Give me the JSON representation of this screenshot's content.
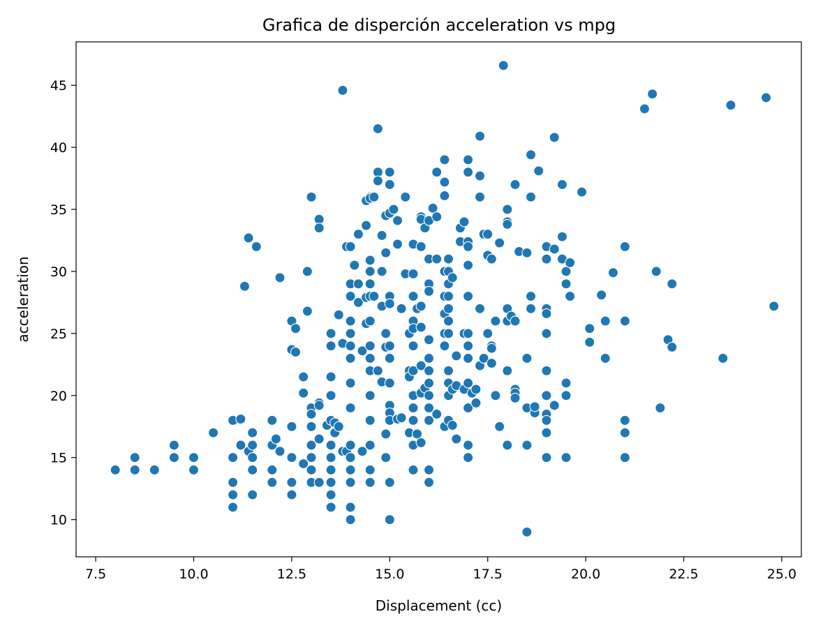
{
  "chart_data": {
    "type": "scatter",
    "title": "Grafica de disperción acceleration vs mpg",
    "xlabel": "Displacement (cc)",
    "ylabel": "acceleration",
    "xlim": [
      7.0,
      25.5
    ],
    "ylim": [
      7.0,
      48.5
    ],
    "xticks": [
      7.5,
      10.0,
      12.5,
      15.0,
      17.5,
      20.0,
      22.5,
      25.0
    ],
    "xtick_labels": [
      "7.5",
      "10.0",
      "12.5",
      "15.0",
      "17.5",
      "20.0",
      "22.5",
      "25.0"
    ],
    "yticks": [
      10,
      15,
      20,
      25,
      30,
      35,
      40,
      45
    ],
    "ytick_labels": [
      "10",
      "15",
      "20",
      "25",
      "30",
      "35",
      "40",
      "45"
    ],
    "grid": false,
    "legend": "none",
    "point_color": "#1f77b4",
    "points": [
      [
        8.0,
        14
      ],
      [
        8.5,
        14
      ],
      [
        8.5,
        15
      ],
      [
        9.0,
        14
      ],
      [
        9.5,
        15
      ],
      [
        9.5,
        16
      ],
      [
        10.0,
        15
      ],
      [
        10.0,
        14
      ],
      [
        10.5,
        17
      ],
      [
        11.0,
        18
      ],
      [
        11.0,
        15
      ],
      [
        11.0,
        13
      ],
      [
        11.0,
        12
      ],
      [
        11.0,
        11
      ],
      [
        11.2,
        18.1
      ],
      [
        11.2,
        16
      ],
      [
        11.3,
        28.8
      ],
      [
        11.4,
        32.7
      ],
      [
        11.4,
        15.5
      ],
      [
        11.5,
        17
      ],
      [
        11.5,
        16
      ],
      [
        11.5,
        15
      ],
      [
        11.5,
        14
      ],
      [
        11.5,
        12
      ],
      [
        11.6,
        32
      ],
      [
        12.0,
        18
      ],
      [
        12.0,
        16
      ],
      [
        12.0,
        14
      ],
      [
        12.0,
        13
      ],
      [
        12.1,
        16.5
      ],
      [
        12.2,
        29.5
      ],
      [
        12.2,
        15.5
      ],
      [
        12.5,
        26
      ],
      [
        12.5,
        23.7
      ],
      [
        12.5,
        17.5
      ],
      [
        12.5,
        15
      ],
      [
        12.5,
        13
      ],
      [
        12.5,
        12
      ],
      [
        12.6,
        25.4
      ],
      [
        12.6,
        23.5
      ],
      [
        12.8,
        21.5
      ],
      [
        12.8,
        20.2
      ],
      [
        12.8,
        14.5
      ],
      [
        12.9,
        30
      ],
      [
        12.9,
        26.8
      ],
      [
        13.0,
        36
      ],
      [
        13.0,
        19
      ],
      [
        13.0,
        18.5
      ],
      [
        13.0,
        17.5
      ],
      [
        13.0,
        16
      ],
      [
        13.0,
        15
      ],
      [
        13.0,
        14
      ],
      [
        13.0,
        13
      ],
      [
        13.2,
        34.2
      ],
      [
        13.2,
        33.5
      ],
      [
        13.2,
        19.4
      ],
      [
        13.2,
        19.2
      ],
      [
        13.2,
        16.5
      ],
      [
        13.2,
        13
      ],
      [
        13.4,
        17.6
      ],
      [
        13.5,
        21.5
      ],
      [
        13.5,
        20
      ],
      [
        13.5,
        18
      ],
      [
        13.5,
        16
      ],
      [
        13.5,
        15
      ],
      [
        13.5,
        14
      ],
      [
        13.5,
        13
      ],
      [
        13.5,
        12
      ],
      [
        13.5,
        11
      ],
      [
        13.5,
        25
      ],
      [
        13.5,
        24
      ],
      [
        13.6,
        17.8
      ],
      [
        13.6,
        17
      ],
      [
        13.7,
        26.5
      ],
      [
        13.7,
        17.5
      ],
      [
        13.8,
        44.6
      ],
      [
        13.8,
        24.2
      ],
      [
        13.8,
        15.5
      ],
      [
        13.9,
        32
      ],
      [
        13.9,
        15.5
      ],
      [
        14.0,
        32
      ],
      [
        14.0,
        29
      ],
      [
        14.0,
        28
      ],
      [
        14.0,
        26
      ],
      [
        14.0,
        25
      ],
      [
        14.0,
        24
      ],
      [
        14.0,
        23
      ],
      [
        14.0,
        21
      ],
      [
        14.0,
        19
      ],
      [
        14.0,
        16
      ],
      [
        14.0,
        15
      ],
      [
        14.0,
        14
      ],
      [
        14.0,
        13
      ],
      [
        14.0,
        11
      ],
      [
        14.0,
        10
      ],
      [
        14.1,
        30.5
      ],
      [
        14.2,
        33
      ],
      [
        14.2,
        29
      ],
      [
        14.2,
        27.5
      ],
      [
        14.3,
        23.6
      ],
      [
        14.3,
        15.5
      ],
      [
        14.4,
        35.7
      ],
      [
        14.4,
        33.7
      ],
      [
        14.4,
        27.9
      ],
      [
        14.4,
        25.8
      ],
      [
        14.5,
        36
      ],
      [
        14.5,
        35.9
      ],
      [
        14.5,
        30.9
      ],
      [
        14.5,
        30
      ],
      [
        14.5,
        29
      ],
      [
        14.5,
        28
      ],
      [
        14.5,
        26
      ],
      [
        14.5,
        24
      ],
      [
        14.5,
        23
      ],
      [
        14.5,
        22
      ],
      [
        14.5,
        20
      ],
      [
        14.5,
        18
      ],
      [
        14.5,
        16
      ],
      [
        14.5,
        14
      ],
      [
        14.5,
        13
      ],
      [
        14.6,
        36
      ],
      [
        14.6,
        28
      ],
      [
        14.7,
        41.5
      ],
      [
        14.7,
        38
      ],
      [
        14.7,
        37.3
      ],
      [
        14.7,
        22
      ],
      [
        14.8,
        32.9
      ],
      [
        14.8,
        30
      ],
      [
        14.8,
        27.2
      ],
      [
        14.8,
        21.1
      ],
      [
        14.9,
        34.5
      ],
      [
        14.9,
        31.5
      ],
      [
        14.9,
        25
      ],
      [
        14.9,
        23.9
      ],
      [
        14.9,
        16.9
      ],
      [
        14.9,
        15
      ],
      [
        15.0,
        38
      ],
      [
        15.0,
        37
      ],
      [
        15.0,
        34.7
      ],
      [
        15.0,
        28
      ],
      [
        15.0,
        27.4
      ],
      [
        15.0,
        24
      ],
      [
        15.0,
        23
      ],
      [
        15.0,
        21
      ],
      [
        15.0,
        19.2
      ],
      [
        15.0,
        18.6
      ],
      [
        15.0,
        18
      ],
      [
        15.0,
        13
      ],
      [
        15.0,
        10
      ],
      [
        15.1,
        35
      ],
      [
        15.2,
        18.1
      ],
      [
        15.2,
        34.1
      ],
      [
        15.2,
        32.2
      ],
      [
        15.3,
        18.2
      ],
      [
        15.3,
        27
      ],
      [
        15.4,
        36
      ],
      [
        15.4,
        29.8
      ],
      [
        15.5,
        25
      ],
      [
        15.5,
        22
      ],
      [
        15.5,
        21.5
      ],
      [
        15.5,
        17
      ],
      [
        15.6,
        32.2
      ],
      [
        15.6,
        29.8
      ],
      [
        15.6,
        28
      ],
      [
        15.6,
        26
      ],
      [
        15.6,
        25.4
      ],
      [
        15.6,
        24
      ],
      [
        15.6,
        22
      ],
      [
        15.6,
        20
      ],
      [
        15.6,
        19
      ],
      [
        15.6,
        18
      ],
      [
        15.6,
        16
      ],
      [
        15.6,
        14
      ],
      [
        15.7,
        27
      ],
      [
        15.7,
        16.9
      ],
      [
        15.8,
        34.4
      ],
      [
        15.8,
        34.2
      ],
      [
        15.8,
        32
      ],
      [
        15.8,
        27.2
      ],
      [
        15.8,
        25.5
      ],
      [
        15.8,
        22.4
      ],
      [
        15.8,
        20.2
      ],
      [
        15.8,
        16.2
      ],
      [
        15.9,
        33.5
      ],
      [
        15.9,
        20.6
      ],
      [
        16.0,
        34.1
      ],
      [
        16.0,
        31
      ],
      [
        16.0,
        29
      ],
      [
        16.0,
        28.4
      ],
      [
        16.0,
        24.5
      ],
      [
        16.0,
        23
      ],
      [
        16.0,
        22
      ],
      [
        16.0,
        21
      ],
      [
        16.0,
        20
      ],
      [
        16.0,
        19
      ],
      [
        16.0,
        18
      ],
      [
        16.0,
        14
      ],
      [
        16.0,
        13
      ],
      [
        16.1,
        35.1
      ],
      [
        16.2,
        38
      ],
      [
        16.2,
        34.4
      ],
      [
        16.2,
        31
      ],
      [
        16.2,
        18.5
      ],
      [
        16.4,
        39
      ],
      [
        16.4,
        37.2
      ],
      [
        16.4,
        36.1
      ],
      [
        16.4,
        30
      ],
      [
        16.4,
        28
      ],
      [
        16.4,
        26.6
      ],
      [
        16.4,
        25
      ],
      [
        16.4,
        24
      ],
      [
        16.4,
        17.5
      ],
      [
        16.5,
        31
      ],
      [
        16.5,
        30
      ],
      [
        16.5,
        29
      ],
      [
        16.5,
        28
      ],
      [
        16.5,
        27
      ],
      [
        16.5,
        26
      ],
      [
        16.5,
        25
      ],
      [
        16.5,
        22
      ],
      [
        16.5,
        21
      ],
      [
        16.5,
        20
      ],
      [
        16.5,
        18
      ],
      [
        16.6,
        29.5
      ],
      [
        16.6,
        20.5
      ],
      [
        16.6,
        17.6
      ],
      [
        16.7,
        23.2
      ],
      [
        16.7,
        20.8
      ],
      [
        16.7,
        16.5
      ],
      [
        16.8,
        33.5
      ],
      [
        16.8,
        32.4
      ],
      [
        16.9,
        34
      ],
      [
        16.9,
        25
      ],
      [
        16.9,
        20.5
      ],
      [
        17.0,
        39
      ],
      [
        17.0,
        38
      ],
      [
        17.0,
        32.4
      ],
      [
        17.0,
        32
      ],
      [
        17.0,
        30.5
      ],
      [
        17.0,
        28
      ],
      [
        17.0,
        25
      ],
      [
        17.0,
        24
      ],
      [
        17.0,
        23
      ],
      [
        17.0,
        21
      ],
      [
        17.0,
        19
      ],
      [
        17.0,
        16
      ],
      [
        17.0,
        15
      ],
      [
        17.1,
        20.2
      ],
      [
        17.2,
        20.5
      ],
      [
        17.2,
        19.4
      ],
      [
        17.3,
        40.9
      ],
      [
        17.3,
        37.7
      ],
      [
        17.3,
        36
      ],
      [
        17.3,
        27
      ],
      [
        17.3,
        22.4
      ],
      [
        17.4,
        33
      ],
      [
        17.4,
        23
      ],
      [
        17.5,
        33
      ],
      [
        17.5,
        31.3
      ],
      [
        17.5,
        25
      ],
      [
        17.6,
        31
      ],
      [
        17.6,
        24
      ],
      [
        17.6,
        23.8
      ],
      [
        17.6,
        22.6
      ],
      [
        17.7,
        20
      ],
      [
        17.7,
        26
      ],
      [
        17.8,
        17.5
      ],
      [
        17.8,
        32.3
      ],
      [
        18.0,
        35
      ],
      [
        18.0,
        34
      ],
      [
        18.0,
        33.8
      ],
      [
        18.0,
        27
      ],
      [
        18.0,
        26
      ],
      [
        18.0,
        22
      ],
      [
        18.0,
        16
      ],
      [
        18.1,
        26.4
      ],
      [
        18.2,
        37
      ],
      [
        18.2,
        26
      ],
      [
        18.2,
        20.5
      ],
      [
        18.2,
        20.2
      ],
      [
        18.2,
        19.8
      ],
      [
        18.3,
        31.6
      ],
      [
        18.5,
        31.5
      ],
      [
        18.5,
        23
      ],
      [
        18.5,
        19
      ],
      [
        18.5,
        16
      ],
      [
        18.5,
        9
      ],
      [
        18.6,
        39.4
      ],
      [
        18.6,
        36
      ],
      [
        18.6,
        28
      ],
      [
        18.6,
        27
      ],
      [
        18.7,
        18.6
      ],
      [
        18.7,
        19.1
      ],
      [
        18.8,
        38.1
      ],
      [
        19.0,
        32
      ],
      [
        19.0,
        31
      ],
      [
        19.0,
        27
      ],
      [
        19.0,
        26.6
      ],
      [
        19.0,
        25
      ],
      [
        19.0,
        22
      ],
      [
        19.0,
        20
      ],
      [
        19.0,
        18.5
      ],
      [
        19.0,
        18
      ],
      [
        19.0,
        17
      ],
      [
        19.0,
        15
      ],
      [
        19.2,
        40.8
      ],
      [
        19.2,
        31.8
      ],
      [
        19.2,
        19.2
      ],
      [
        19.4,
        37
      ],
      [
        19.4,
        32.8
      ],
      [
        19.4,
        31
      ],
      [
        19.5,
        30
      ],
      [
        19.5,
        29
      ],
      [
        19.5,
        21
      ],
      [
        19.5,
        20
      ],
      [
        19.5,
        15
      ],
      [
        19.6,
        30.7
      ],
      [
        19.6,
        28
      ],
      [
        19.9,
        36.4
      ],
      [
        20.1,
        25.4
      ],
      [
        20.1,
        24.3
      ],
      [
        20.4,
        28.1
      ],
      [
        20.5,
        26
      ],
      [
        20.5,
        23
      ],
      [
        20.7,
        29.9
      ],
      [
        21.0,
        32
      ],
      [
        21.0,
        26
      ],
      [
        21.0,
        18
      ],
      [
        21.0,
        17
      ],
      [
        21.0,
        15
      ],
      [
        21.5,
        43.1
      ],
      [
        21.7,
        44.3
      ],
      [
        21.8,
        30
      ],
      [
        21.9,
        19
      ],
      [
        22.1,
        24.5
      ],
      [
        22.2,
        29
      ],
      [
        22.2,
        23.9
      ],
      [
        23.5,
        23
      ],
      [
        23.7,
        43.4
      ],
      [
        24.6,
        44
      ],
      [
        24.8,
        27.2
      ],
      [
        17.9,
        46.6
      ]
    ]
  }
}
